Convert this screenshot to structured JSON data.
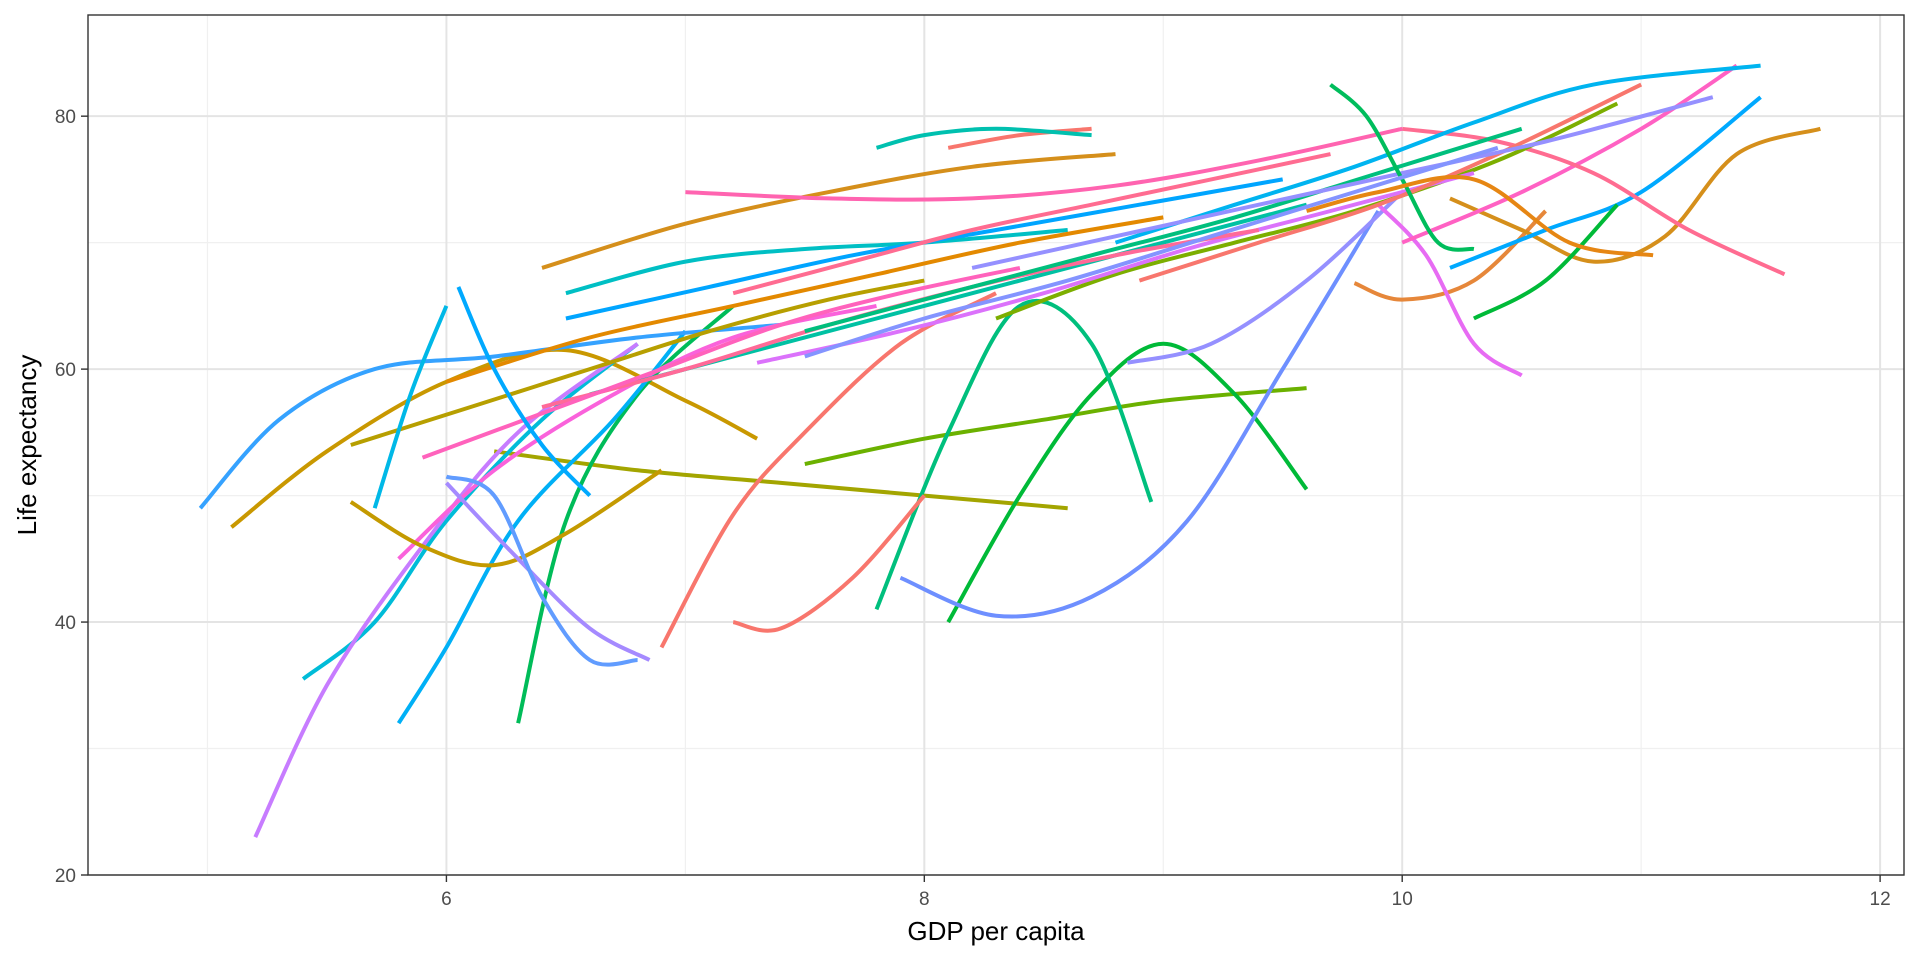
{
  "chart_data": {
    "type": "line",
    "title": "",
    "xlabel": "GDP per capita",
    "ylabel": "Life expectancy",
    "xlim": [
      4.5,
      12.1
    ],
    "ylim": [
      20,
      88
    ],
    "xticks": [
      6,
      8,
      10,
      12
    ],
    "yticks": [
      20,
      40,
      60,
      80
    ],
    "grid": true,
    "legend": "none",
    "series": [
      {
        "color": "#F8766D",
        "x": [
          8.1,
          8.4,
          8.7
        ],
        "y": [
          77.5,
          78.5,
          79.0
        ]
      },
      {
        "color": "#E6873A",
        "x": [
          9.8,
          10.0,
          10.3,
          10.6
        ],
        "y": [
          66.8,
          65.5,
          67.0,
          72.5
        ]
      },
      {
        "color": "#D58F1B",
        "x": [
          10.2,
          10.5,
          10.8,
          11.1,
          11.4,
          11.75
        ],
        "y": [
          73.5,
          71.0,
          68.5,
          70.5,
          77.0,
          79.0
        ]
      },
      {
        "color": "#C99800",
        "x": [
          5.1,
          5.5,
          6.0,
          6.5,
          7.0,
          7.3
        ],
        "y": [
          47.5,
          53.5,
          59.0,
          61.5,
          57.5,
          54.5
        ]
      },
      {
        "color": "#A3A500",
        "x": [
          6.2,
          6.8,
          7.4,
          8.0,
          8.6
        ],
        "y": [
          53.5,
          52.0,
          51.0,
          50.0,
          49.0
        ]
      },
      {
        "color": "#6BB100",
        "x": [
          7.5,
          8.0,
          8.5,
          9.0,
          9.6
        ],
        "y": [
          52.5,
          54.5,
          56.0,
          57.5,
          58.5
        ]
      },
      {
        "color": "#00BA38",
        "x": [
          8.1,
          8.4,
          8.7,
          9.0,
          9.3,
          9.6
        ],
        "y": [
          40.0,
          50.0,
          58.0,
          62.0,
          58.0,
          50.5
        ]
      },
      {
        "color": "#00BC59",
        "x": [
          6.3,
          6.5,
          6.8,
          7.2
        ],
        "y": [
          32.0,
          48.0,
          58.0,
          65.0
        ]
      },
      {
        "color": "#00BF7D",
        "x": [
          7.8,
          8.1,
          8.4,
          8.7,
          8.95
        ],
        "y": [
          41.0,
          55.0,
          65.0,
          62.0,
          49.5
        ]
      },
      {
        "color": "#00C0AF",
        "x": [
          7.8,
          8.0,
          8.3,
          8.7
        ],
        "y": [
          77.5,
          78.5,
          79.0,
          78.5
        ]
      },
      {
        "color": "#00BCD8",
        "x": [
          5.4,
          5.7,
          6.0,
          6.4,
          6.8
        ],
        "y": [
          35.5,
          40.0,
          48.0,
          56.0,
          62.0
        ]
      },
      {
        "color": "#00B0F6",
        "x": [
          5.8,
          6.0,
          6.3,
          6.7,
          7.0
        ],
        "y": [
          32.0,
          38.0,
          48.0,
          56.0,
          63.0
        ]
      },
      {
        "color": "#35A2FF",
        "x": [
          4.97,
          5.3,
          5.7,
          6.2,
          6.8,
          7.4
        ],
        "y": [
          49.0,
          56.0,
          60.0,
          61.0,
          62.5,
          63.5
        ]
      },
      {
        "color": "#00A9FF",
        "x": [
          10.2,
          10.6,
          11.0,
          11.5
        ],
        "y": [
          68.0,
          71.0,
          74.0,
          81.5
        ]
      },
      {
        "color": "#6E8FFF",
        "x": [
          7.9,
          8.3,
          8.7,
          9.1,
          9.5,
          9.9
        ],
        "y": [
          43.5,
          40.5,
          42.0,
          48.0,
          60.0,
          72.5
        ]
      },
      {
        "color": "#9590FF",
        "x": [
          8.85,
          9.2,
          9.6,
          10.0
        ],
        "y": [
          60.5,
          62.0,
          67.0,
          74.0
        ]
      },
      {
        "color": "#C77CFF",
        "x": [
          5.2,
          5.5,
          5.9,
          6.3,
          6.8
        ],
        "y": [
          23.0,
          35.0,
          46.0,
          55.0,
          62.0
        ]
      },
      {
        "color": "#E76BF3",
        "x": [
          9.9,
          10.1,
          10.3,
          10.5
        ],
        "y": [
          73.0,
          69.0,
          62.0,
          59.5
        ]
      },
      {
        "color": "#FA62DB",
        "x": [
          5.8,
          6.2,
          6.7,
          7.2,
          7.8
        ],
        "y": [
          45.0,
          52.0,
          58.0,
          62.5,
          65.0
        ]
      },
      {
        "color": "#FF61C3",
        "x": [
          10.0,
          10.5,
          11.0,
          11.4
        ],
        "y": [
          70.0,
          74.0,
          79.0,
          84.0
        ]
      },
      {
        "color": "#FF6C91",
        "x": [
          10.0,
          10.4,
          10.8,
          11.2,
          11.6
        ],
        "y": [
          79.0,
          78.0,
          75.5,
          71.0,
          67.5
        ]
      },
      {
        "color": "#D58F1B",
        "x": [
          6.4,
          7.0,
          7.6,
          8.2,
          8.8
        ],
        "y": [
          68.0,
          71.5,
          74.0,
          76.0,
          77.0
        ]
      },
      {
        "color": "#00BFC4",
        "x": [
          6.5,
          7.0,
          7.5,
          8.0,
          8.6
        ],
        "y": [
          66.0,
          68.5,
          69.5,
          70.0,
          71.0
        ]
      },
      {
        "color": "#F8766D",
        "x": [
          7.2,
          7.4,
          7.7,
          8.0
        ],
        "y": [
          40.0,
          39.5,
          43.5,
          50.0
        ]
      },
      {
        "color": "#F8766D",
        "x": [
          6.9,
          7.2,
          7.5,
          7.9,
          8.3
        ],
        "y": [
          38.0,
          48.5,
          55.0,
          62.0,
          66.0
        ]
      },
      {
        "color": "#C49A00",
        "x": [
          5.6,
          5.9,
          6.2,
          6.5,
          6.9
        ],
        "y": [
          49.5,
          46.0,
          44.5,
          47.0,
          52.0
        ]
      },
      {
        "color": "#A58AFF",
        "x": [
          6.0,
          6.3,
          6.6,
          6.85
        ],
        "y": [
          51.0,
          45.0,
          39.5,
          37.0
        ]
      },
      {
        "color": "#619CFF",
        "x": [
          6.0,
          6.2,
          6.4,
          6.6,
          6.8
        ],
        "y": [
          51.5,
          50.0,
          42.0,
          37.0,
          37.0
        ]
      },
      {
        "color": "#7CAE00",
        "x": [
          8.3,
          8.8,
          9.3,
          9.8,
          10.4,
          10.9
        ],
        "y": [
          64.0,
          67.5,
          70.0,
          72.5,
          76.5,
          81.0
        ]
      },
      {
        "color": "#00B4F0",
        "x": [
          8.8,
          9.3,
          9.8,
          10.3,
          10.8,
          11.5
        ],
        "y": [
          70.0,
          73.0,
          76.0,
          79.5,
          82.5,
          84.0
        ]
      },
      {
        "color": "#FF64B0",
        "x": [
          7.0,
          7.6,
          8.2,
          8.8,
          9.4,
          10.0
        ],
        "y": [
          74.0,
          73.5,
          73.5,
          74.5,
          76.5,
          79.0
        ]
      },
      {
        "color": "#E38900",
        "x": [
          6.0,
          6.6,
          7.2,
          7.8,
          8.4,
          9.0
        ],
        "y": [
          59.0,
          62.5,
          65.0,
          67.5,
          70.0,
          72.0
        ]
      },
      {
        "color": "#00C1A3",
        "x": [
          6.6,
          7.2,
          7.8,
          8.4,
          9.0,
          9.6
        ],
        "y": [
          58.0,
          61.0,
          64.0,
          67.0,
          70.0,
          73.0
        ]
      },
      {
        "color": "#DB72FB",
        "x": [
          7.3,
          7.9,
          8.5,
          9.1,
          9.7,
          10.3
        ],
        "y": [
          60.5,
          63.0,
          66.0,
          69.5,
          72.5,
          75.5
        ]
      },
      {
        "color": "#FF6A98",
        "x": [
          6.4,
          7.0,
          7.6,
          8.2,
          8.8,
          9.4
        ],
        "y": [
          57.0,
          60.0,
          63.5,
          66.5,
          69.0,
          71.0
        ]
      },
      {
        "color": "#00BA38",
        "x": [
          10.3,
          10.6,
          10.9
        ],
        "y": [
          64.0,
          67.0,
          73.0
        ]
      },
      {
        "color": "#00A5FF",
        "x": [
          6.5,
          7.1,
          7.7,
          8.3,
          8.9,
          9.5
        ],
        "y": [
          64.0,
          66.5,
          69.0,
          71.0,
          73.0,
          75.0
        ]
      },
      {
        "color": "#B79F00",
        "x": [
          5.6,
          6.1,
          6.6,
          7.1,
          7.6,
          8.0
        ],
        "y": [
          54.0,
          57.0,
          60.0,
          63.0,
          65.5,
          67.0
        ]
      },
      {
        "color": "#FF62BC",
        "x": [
          5.9,
          6.4,
          6.9,
          7.4,
          7.9,
          8.4
        ],
        "y": [
          53.0,
          56.5,
          60.0,
          63.5,
          66.0,
          68.0
        ]
      },
      {
        "color": "#00BF7D",
        "x": [
          7.5,
          8.1,
          8.7,
          9.3,
          9.9,
          10.5
        ],
        "y": [
          63.0,
          66.0,
          69.0,
          72.0,
          75.5,
          79.0
        ]
      },
      {
        "color": "#F8766D",
        "x": [
          8.9,
          9.4,
          9.9,
          10.4,
          11.0
        ],
        "y": [
          67.0,
          70.0,
          73.0,
          77.0,
          82.5
        ]
      },
      {
        "color": "#9590FF",
        "x": [
          8.2,
          8.8,
          9.4,
          10.0,
          10.6,
          11.3
        ],
        "y": [
          68.0,
          70.5,
          73.0,
          75.5,
          78.0,
          81.5
        ]
      },
      {
        "color": "#00BD5C",
        "x": [
          9.7,
          9.85,
          10.0,
          10.15,
          10.3
        ],
        "y": [
          82.5,
          80.0,
          75.0,
          70.0,
          69.5
        ]
      },
      {
        "color": "#E68613",
        "x": [
          9.6,
          9.9,
          10.3,
          10.7,
          11.05
        ],
        "y": [
          72.5,
          74.0,
          75.0,
          70.0,
          69.0
        ]
      },
      {
        "color": "#00B8E7",
        "x": [
          5.7,
          5.85,
          6.0
        ],
        "y": [
          49.0,
          58.0,
          65.0
        ]
      },
      {
        "color": "#00A9FF",
        "x": [
          6.05,
          6.2,
          6.4,
          6.6
        ],
        "y": [
          66.5,
          60.0,
          54.0,
          50.0
        ]
      },
      {
        "color": "#8494FF",
        "x": [
          7.5,
          8.0,
          8.6,
          9.2,
          9.8,
          10.4
        ],
        "y": [
          61.0,
          64.0,
          67.0,
          70.5,
          74.0,
          77.5
        ]
      },
      {
        "color": "#FF6C91",
        "x": [
          7.2,
          7.7,
          8.2,
          8.7,
          9.2,
          9.7
        ],
        "y": [
          66.0,
          68.5,
          71.0,
          73.0,
          75.0,
          77.0
        ]
      }
    ]
  }
}
